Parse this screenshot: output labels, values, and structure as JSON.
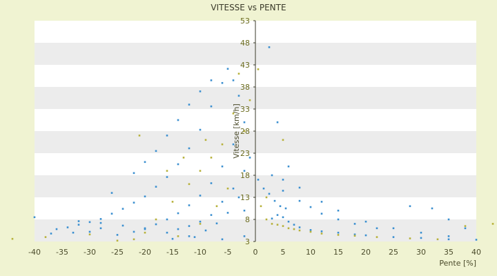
{
  "chart_data": {
    "type": "scatter",
    "title": "VITESSE vs PENTE",
    "xlabel": "Pente [%]",
    "ylabel": "Vitesse [km/h]",
    "xlim": [
      -40,
      40
    ],
    "ylim": [
      3,
      53
    ],
    "x_ticks": [
      -40,
      -35,
      -30,
      -25,
      -20,
      -15,
      -10,
      -5,
      0,
      5,
      10,
      15,
      20,
      25,
      30,
      35,
      40
    ],
    "y_ticks": [
      3,
      8,
      13,
      18,
      23,
      28,
      33,
      38,
      43,
      48,
      53
    ],
    "grid": "alternating horizontal bands",
    "legend": "none",
    "colors": {
      "primary": "#3a8fd0",
      "secondary": "#b7b13a",
      "bands": "#ececec",
      "plot_bg": "#ffffff"
    },
    "series": [
      {
        "id": "A",
        "color": "#3a8fd0",
        "points": [
          [
            -40,
            8.5
          ],
          [
            -37,
            4.8
          ],
          [
            -36,
            5.8
          ],
          [
            -34,
            6.2
          ],
          [
            -32,
            6.8
          ],
          [
            -30,
            7.4
          ],
          [
            -28,
            8.1
          ],
          [
            -26,
            9.3
          ],
          [
            -24,
            10.4
          ],
          [
            -22,
            11.8
          ],
          [
            -20,
            13.2
          ],
          [
            -18,
            15.4
          ],
          [
            -16,
            17.6
          ],
          [
            -14,
            20.5
          ],
          [
            -12,
            24.1
          ],
          [
            -10,
            28.3
          ],
          [
            -8,
            33.6
          ],
          [
            -6,
            38.9
          ],
          [
            -5,
            42.1
          ],
          [
            -4,
            39.5
          ],
          [
            -3,
            36.0
          ],
          [
            -2,
            30.0
          ],
          [
            -1,
            22.0
          ],
          [
            -25,
            4.5
          ],
          [
            -22,
            5.2
          ],
          [
            -20,
            6.0
          ],
          [
            -18,
            6.9
          ],
          [
            -16,
            8.0
          ],
          [
            -14,
            9.4
          ],
          [
            -12,
            11.2
          ],
          [
            -10,
            13.4
          ],
          [
            -8,
            16.2
          ],
          [
            -6,
            20.0
          ],
          [
            -4,
            25.0
          ],
          [
            -2,
            19.0
          ],
          [
            -15,
            3.6
          ],
          [
            -12,
            4.2
          ],
          [
            -9,
            5.5
          ],
          [
            -7,
            7.1
          ],
          [
            -5,
            9.5
          ],
          [
            -3,
            13.0
          ],
          [
            -30,
            5.2
          ],
          [
            -28,
            6.0
          ],
          [
            -33,
            5.0
          ],
          [
            -18,
            23.5
          ],
          [
            -16,
            27.0
          ],
          [
            -14,
            30.5
          ],
          [
            -12,
            34.0
          ],
          [
            -10,
            37.0
          ],
          [
            -8,
            39.5
          ],
          [
            -26,
            14.0
          ],
          [
            -22,
            18.5
          ],
          [
            -20,
            21.0
          ],
          [
            0.5,
            17.0
          ],
          [
            1.5,
            15.0
          ],
          [
            2.5,
            13.8
          ],
          [
            3.5,
            12.2
          ],
          [
            4.5,
            11.0
          ],
          [
            5.5,
            10.5
          ],
          [
            3,
            8.2
          ],
          [
            4,
            9.0
          ],
          [
            5,
            8.5
          ],
          [
            6,
            7.5
          ],
          [
            7,
            6.8
          ],
          [
            8,
            6.2
          ],
          [
            10,
            5.6
          ],
          [
            12,
            5.3
          ],
          [
            15,
            5.0
          ],
          [
            18,
            4.6
          ],
          [
            20,
            4.4
          ],
          [
            25,
            4.0
          ],
          [
            30,
            3.8
          ],
          [
            35,
            3.5
          ],
          [
            40,
            3.4
          ],
          [
            3,
            18.0
          ],
          [
            5,
            17.0
          ],
          [
            8,
            15.2
          ],
          [
            12,
            12.0
          ],
          [
            15,
            10.0
          ],
          [
            20,
            7.5
          ],
          [
            25,
            6.0
          ],
          [
            30,
            5.0
          ],
          [
            35,
            4.2
          ],
          [
            5,
            14.5
          ],
          [
            8,
            12.2
          ],
          [
            10,
            10.8
          ],
          [
            12,
            9.3
          ],
          [
            15,
            8.0
          ],
          [
            18,
            7.0
          ],
          [
            22,
            6.0
          ],
          [
            2.5,
            47.0
          ],
          [
            4,
            30.0
          ],
          [
            6,
            20.0
          ],
          [
            28,
            11.0
          ],
          [
            32,
            10.5
          ],
          [
            35,
            8.0
          ],
          [
            38,
            6.0
          ],
          [
            -32,
            7.6
          ],
          [
            -28,
            7.2
          ],
          [
            -24,
            6.6
          ],
          [
            -20,
            5.8
          ],
          [
            -16,
            5.0
          ],
          [
            -11,
            4.0
          ],
          [
            -6,
            3.5
          ],
          [
            -2,
            4.2
          ],
          [
            -2,
            10.0
          ],
          [
            -4,
            15.0
          ],
          [
            -6,
            12.0
          ],
          [
            -8,
            9.0
          ],
          [
            -10,
            7.5
          ],
          [
            -12,
            6.5
          ],
          [
            -14,
            5.8
          ]
        ]
      },
      {
        "id": "B",
        "color": "#b7b13a",
        "points": [
          [
            -44,
            3.6
          ],
          [
            -38,
            4.0
          ],
          [
            -30,
            4.6
          ],
          [
            -25,
            3.2
          ],
          [
            -22,
            3.5
          ],
          [
            -20,
            5.0
          ],
          [
            -18,
            8.0
          ],
          [
            -15,
            12.0
          ],
          [
            -12,
            16.0
          ],
          [
            -10,
            19.0
          ],
          [
            -8,
            22.0
          ],
          [
            -6,
            25.0
          ],
          [
            -4,
            32.0
          ],
          [
            -3,
            41.0
          ],
          [
            -2,
            28.0
          ],
          [
            -1,
            35.0
          ],
          [
            -14,
            4.2
          ],
          [
            -10,
            7.0
          ],
          [
            -7,
            11.0
          ],
          [
            -5,
            15.0
          ],
          [
            0.5,
            42.0
          ],
          [
            2,
            8.0
          ],
          [
            3,
            7.0
          ],
          [
            4,
            6.8
          ],
          [
            5,
            6.5
          ],
          [
            6,
            6.0
          ],
          [
            7,
            5.8
          ],
          [
            8,
            5.5
          ],
          [
            10,
            5.2
          ],
          [
            12,
            4.8
          ],
          [
            15,
            4.5
          ],
          [
            18,
            4.3
          ],
          [
            22,
            4.0
          ],
          [
            28,
            3.7
          ],
          [
            33,
            3.5
          ],
          [
            38,
            6.5
          ],
          [
            43,
            7.0
          ],
          [
            5,
            26.0
          ],
          [
            2,
            13.0
          ],
          [
            1,
            11.0
          ],
          [
            -21,
            27.0
          ],
          [
            -16,
            19.0
          ],
          [
            -13,
            22.0
          ],
          [
            -9,
            26.0
          ]
        ]
      }
    ]
  }
}
